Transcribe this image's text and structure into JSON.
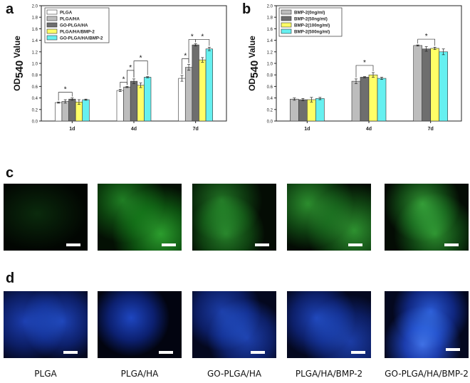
{
  "panels": {
    "a": "a",
    "b": "b",
    "c": "c",
    "d": "d"
  },
  "chart_data": [
    {
      "type": "bar",
      "panel": "a",
      "ylabel": "OD540 Value",
      "ylabel_main": "OD",
      "ylabel_sub": "540",
      "ylabel_rest": " Value",
      "ylim": [
        0,
        2.0
      ],
      "yticks": [
        0.0,
        0.2,
        0.4,
        0.6,
        0.8,
        1.0,
        1.2,
        1.4,
        1.6,
        1.8,
        2.0
      ],
      "categories": [
        "1d",
        "4d",
        "7d"
      ],
      "legend_position": "top-left",
      "series": [
        {
          "name": "PLGA",
          "color": "#ffffff",
          "values": [
            0.32,
            0.53,
            0.74
          ],
          "errors": [
            0.01,
            0.02,
            0.05
          ]
        },
        {
          "name": "PLGA/HA",
          "color": "#bdbdbd",
          "values": [
            0.34,
            0.59,
            0.93
          ],
          "errors": [
            0.03,
            0.01,
            0.05
          ]
        },
        {
          "name": "GO-PLGA/HA",
          "color": "#6e6e6e",
          "values": [
            0.38,
            0.69,
            1.32
          ],
          "errors": [
            0.02,
            0.04,
            0.02
          ]
        },
        {
          "name": "PLGA/HA/BMP-2",
          "color": "#ffff66",
          "values": [
            0.33,
            0.62,
            1.06
          ],
          "errors": [
            0.04,
            0.04,
            0.04
          ]
        },
        {
          "name": "GO-PLGA/HA/BMP-2",
          "color": "#66f0f0",
          "values": [
            0.37,
            0.76,
            1.25
          ],
          "errors": [
            0.01,
            0.01,
            0.03
          ]
        }
      ],
      "annotations": [
        "*",
        "*",
        "*",
        "*",
        "*",
        "*",
        "*"
      ]
    },
    {
      "type": "bar",
      "panel": "b",
      "ylabel": "OD540 Value",
      "ylabel_main": "OD",
      "ylabel_sub": "540",
      "ylabel_rest": " Value",
      "ylim": [
        0,
        2.0
      ],
      "yticks": [
        0.0,
        0.2,
        0.4,
        0.6,
        0.8,
        1.0,
        1.2,
        1.4,
        1.6,
        1.8,
        2.0
      ],
      "categories": [
        "1d",
        "4d",
        "7d"
      ],
      "legend_position": "top-left",
      "series": [
        {
          "name": "BMP-2(0ng/ml)",
          "color": "#bdbdbd",
          "values": [
            0.38,
            0.69,
            1.31
          ],
          "errors": [
            0.02,
            0.04,
            0.01
          ]
        },
        {
          "name": "BMP-2(50ng/ml)",
          "color": "#6e6e6e",
          "values": [
            0.37,
            0.76,
            1.25
          ],
          "errors": [
            0.02,
            0.01,
            0.04
          ]
        },
        {
          "name": "BMP-2(100ng/ml)",
          "color": "#ffff66",
          "values": [
            0.37,
            0.8,
            1.26
          ],
          "errors": [
            0.04,
            0.04,
            0.02
          ]
        },
        {
          "name": "BMP-2(500ng/ml)",
          "color": "#66f0f0",
          "values": [
            0.39,
            0.74,
            1.2
          ],
          "errors": [
            0.02,
            0.02,
            0.05
          ]
        }
      ],
      "annotations": [
        "*",
        "*"
      ]
    }
  ],
  "captions": [
    "PLGA",
    "PLGA/HA",
    "GO-PLGA/HA",
    "PLGA/HA/BMP-2",
    "GO-PLGA/HA/BMP-2"
  ]
}
